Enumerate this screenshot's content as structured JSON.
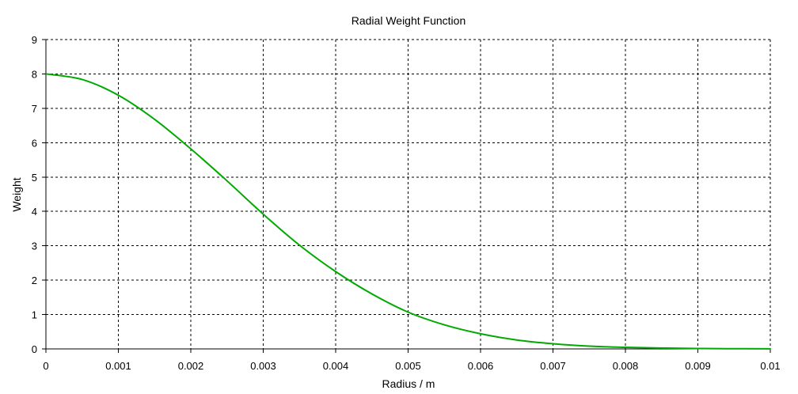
{
  "chart_data": {
    "type": "line",
    "title": "Radial Weight Function",
    "xlabel": "Radius / m",
    "ylabel": "Weight",
    "xlim": [
      0,
      0.01
    ],
    "ylim": [
      0,
      9
    ],
    "x_ticks": [
      "0",
      "0.001",
      "0.002",
      "0.003",
      "0.004",
      "0.005",
      "0.006",
      "0.007",
      "0.008",
      "0.009",
      "0.01"
    ],
    "y_ticks": [
      "0",
      "1",
      "2",
      "3",
      "4",
      "5",
      "6",
      "7",
      "8",
      "9"
    ],
    "grid": true,
    "legend": "none",
    "series": [
      {
        "color": "#00aa00",
        "x": [
          0,
          0.0005,
          0.001,
          0.0015,
          0.002,
          0.0025,
          0.003,
          0.0035,
          0.004,
          0.0045,
          0.005,
          0.0055,
          0.006,
          0.0065,
          0.007,
          0.0075,
          0.008,
          0.0085,
          0.009,
          0.0095,
          0.01
        ],
        "y": [
          8.0,
          7.84,
          7.38,
          6.68,
          5.82,
          4.89,
          3.92,
          3.02,
          2.25,
          1.6,
          1.07,
          0.7,
          0.44,
          0.26,
          0.15,
          0.08,
          0.045,
          0.025,
          0.012,
          0.006,
          0.003
        ]
      }
    ]
  }
}
